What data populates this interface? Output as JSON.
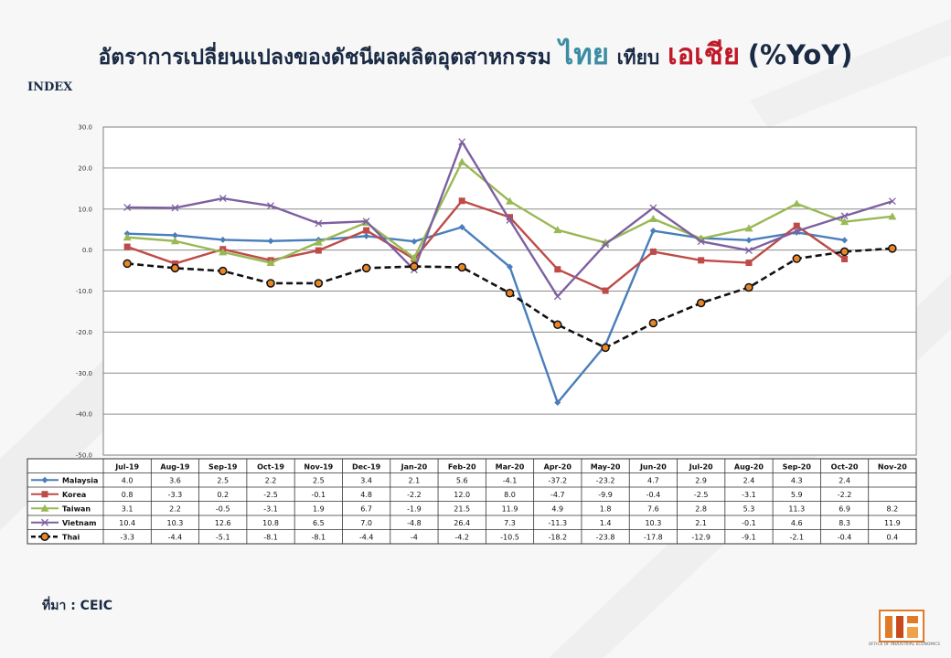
{
  "title": {
    "main": "อัตราการเปลี่ยนแปลงของดัชนีผลผลิตอุตสาหกรรม",
    "thai": "ไทย",
    "mid": "เทียบ",
    "asia": "เอเชีย",
    "unit": "(%YoY)"
  },
  "index_label": "INDEX",
  "source": "ที่มา : CEIC",
  "logo": {
    "org": "OFFICE OF INDUSTRIAL ECONOMICS",
    "icon": "oie-logo-icon"
  },
  "colors": {
    "Malaysia": "#4a7ebb",
    "Korea": "#be4b48",
    "Taiwan": "#98b954",
    "Vietnam": "#7d60a0",
    "Thai": "#111111",
    "thai_marker": "#e8862a"
  },
  "chart_data": {
    "type": "line",
    "x": [
      "Jul-19",
      "Aug-19",
      "Sep-19",
      "Oct-19",
      "Nov-19",
      "Dec-19",
      "Jan-20",
      "Feb-20",
      "Mar-20",
      "Apr-20",
      "May-20",
      "Jun-20",
      "Jul-20",
      "Aug-20",
      "Sep-20",
      "Oct-20",
      "Nov-20"
    ],
    "ylim": [
      -50,
      30
    ],
    "yticks": [
      "30.0",
      "20.0",
      "10.0",
      "0.0",
      "-10.0",
      "-20.0",
      "-30.0",
      "-40.0",
      "-50.0"
    ],
    "grid": true,
    "legend": "table-bottom",
    "series": [
      {
        "name": "Malaysia",
        "marker": "diamond",
        "values": [
          4.0,
          3.6,
          2.5,
          2.2,
          2.5,
          3.4,
          2.1,
          5.6,
          -4.1,
          -37.2,
          -23.2,
          4.7,
          2.9,
          2.4,
          4.3,
          2.4,
          null
        ],
        "labels": [
          "4.0",
          "3.6",
          "2.5",
          "2.2",
          "2.5",
          "3.4",
          "2.1",
          "5.6",
          "-4.1",
          "-37.2",
          "-23.2",
          "4.7",
          "2.9",
          "2.4",
          "4.3",
          "2.4",
          ""
        ]
      },
      {
        "name": "Korea",
        "marker": "square",
        "values": [
          0.8,
          -3.3,
          0.2,
          -2.5,
          -0.1,
          4.8,
          -2.2,
          12.0,
          8.0,
          -4.7,
          -9.9,
          -0.4,
          -2.5,
          -3.1,
          5.9,
          -2.2,
          null
        ],
        "labels": [
          "0.8",
          "-3.3",
          "0.2",
          "-2.5",
          "-0.1",
          "4.8",
          "-2.2",
          "12.0",
          "8.0",
          "-4.7",
          "-9.9",
          "-0.4",
          "-2.5",
          "-3.1",
          "5.9",
          "-2.2",
          ""
        ]
      },
      {
        "name": "Taiwan",
        "marker": "triangle",
        "values": [
          3.1,
          2.2,
          -0.5,
          -3.1,
          1.9,
          6.7,
          -1.9,
          21.5,
          11.9,
          4.9,
          1.8,
          7.6,
          2.8,
          5.3,
          11.3,
          6.9,
          8.2
        ],
        "labels": [
          "3.1",
          "2.2",
          "-0.5",
          "-3.1",
          "1.9",
          "6.7",
          "-1.9",
          "21.5",
          "11.9",
          "4.9",
          "1.8",
          "7.6",
          "2.8",
          "5.3",
          "11.3",
          "6.9",
          "8.2"
        ]
      },
      {
        "name": "Vietnam",
        "marker": "x",
        "values": [
          10.4,
          10.3,
          12.6,
          10.8,
          6.5,
          7.0,
          -4.8,
          26.4,
          7.3,
          -11.3,
          1.4,
          10.3,
          2.1,
          -0.1,
          4.6,
          8.3,
          11.9
        ],
        "labels": [
          "10.4",
          "10.3",
          "12.6",
          "10.8",
          "6.5",
          "7.0",
          "-4.8",
          "26.4",
          "7.3",
          "-11.3",
          "1.4",
          "10.3",
          "2.1",
          "-0.1",
          "4.6",
          "8.3",
          "11.9"
        ]
      },
      {
        "name": "Thai",
        "marker": "circle",
        "dashed": true,
        "values": [
          -3.3,
          -4.4,
          -5.1,
          -8.1,
          -8.1,
          -4.4,
          -4,
          -4.2,
          -10.5,
          -18.2,
          -23.8,
          -17.8,
          -12.9,
          -9.1,
          -2.1,
          -0.4,
          0.4
        ],
        "labels": [
          "-3.3",
          "-4.4",
          "-5.1",
          "-8.1",
          "-8.1",
          "-4.4",
          "-4",
          "-4.2",
          "-10.5",
          "-18.2",
          "-23.8",
          "-17.8",
          "-12.9",
          "-9.1",
          "-2.1",
          "-0.4",
          "0.4"
        ]
      }
    ]
  }
}
